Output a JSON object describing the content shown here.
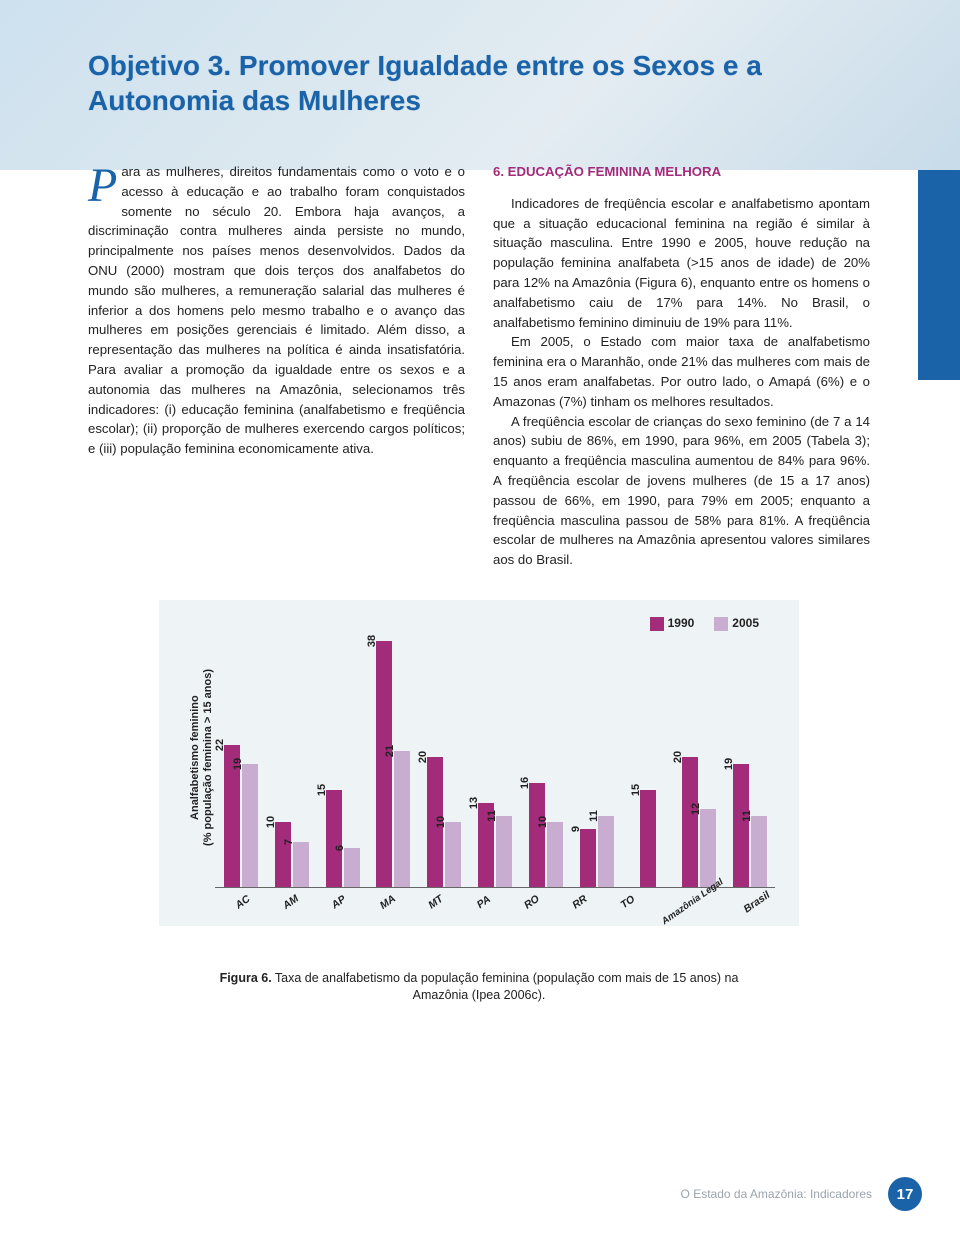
{
  "title": "Objetivo 3. Promover Igualdade entre os Sexos e a Autonomia das Mulheres",
  "dropcap": "P",
  "paragraph1_after_dropcap": "ara as mulheres, direitos fundamentais como o voto e o acesso à educação e ao trabalho foram conquistados somente no século 20. Embora haja avanços, a discriminação contra mulheres ainda persiste no mundo, principalmente nos países menos desenvolvidos. Dados da ONU (2000) mostram que dois terços dos analfabetos do mundo são mulheres, a remuneração salarial das mulheres é inferior a dos homens pelo mesmo trabalho e o avanço das mulheres em posições gerenciais é limitado. Além disso, a representação das mulheres na política é ainda insatisfatória. Para avaliar a promoção da igualdade entre os sexos e a autonomia das mulheres na Amazônia, selecionamos três indicadores: (i) educação feminina (analfabetismo e freqüência escolar); (ii) proporção de mulheres exercendo cargos políticos; e (iii) população feminina economicamente ativa.",
  "section_heading": "6. EDUCAÇÃO FEMININA MELHORA",
  "paragraph2": "Indicadores de freqüência escolar e analfabetismo apontam que a situação educacional feminina na região é similar à situação masculina. Entre 1990 e 2005, houve redução na população feminina analfabeta (>15 anos de idade) de 20% para 12% na Amazônia (Figura 6), enquanto entre os homens o analfabetismo caiu de 17% para 14%. No Brasil, o analfabetismo feminino diminuiu de 19% para 11%.",
  "paragraph3": "Em 2005, o Estado com maior taxa de analfabetismo feminina era o Maranhão, onde 21% das mulheres com mais de 15 anos eram analfabetas. Por outro lado, o Amapá (6%) e o Amazonas (7%) tinham os melhores resultados.",
  "paragraph4": "A freqüência escolar de crianças do sexo feminino (de 7 a 14 anos) subiu de 86%, em 1990, para 96%, em 2005 (Tabela 3); enquanto a freqüência masculina aumentou de 84% para 96%. A freqüência escolar de jovens mulheres (de 15 a 17 anos) passou de 66%, em 1990, para 79% em 2005; enquanto a freqüência masculina passou de 58% para 81%. A freqüência escolar de mulheres na Amazônia apresentou valores similares aos do Brasil.",
  "chart": {
    "type": "bar",
    "background_color": "#eef3f6",
    "y_label_line1": "Analfabetismo feminino",
    "y_label_line2": "(% população feminina > 15 anos)",
    "legend_items": [
      {
        "label": "1990",
        "color": "#a22b7a"
      },
      {
        "label": "2005",
        "color": "#c9add0"
      }
    ],
    "y_max": 40,
    "categories": [
      "AC",
      "AM",
      "AP",
      "MA",
      "MT",
      "PA",
      "RO",
      "RR",
      "TO",
      "Amazônia Legal",
      "Brasil"
    ],
    "series": [
      {
        "name": "1990",
        "color": "#a22b7a",
        "values": [
          22,
          10,
          15,
          38,
          20,
          13,
          16,
          9,
          15,
          20,
          19
        ]
      },
      {
        "name": "2005",
        "color": "#c9add0",
        "values": [
          19,
          7,
          6,
          21,
          10,
          11,
          10,
          11,
          null,
          12,
          11
        ]
      }
    ]
  },
  "caption_bold": "Figura 6.",
  "caption_rest": " Taxa de analfabetismo da população feminina (população com mais de 15 anos) na Amazônia (Ipea 2006c).",
  "footer_text": "O Estado da Amazônia: Indicadores",
  "page_number": "17"
}
